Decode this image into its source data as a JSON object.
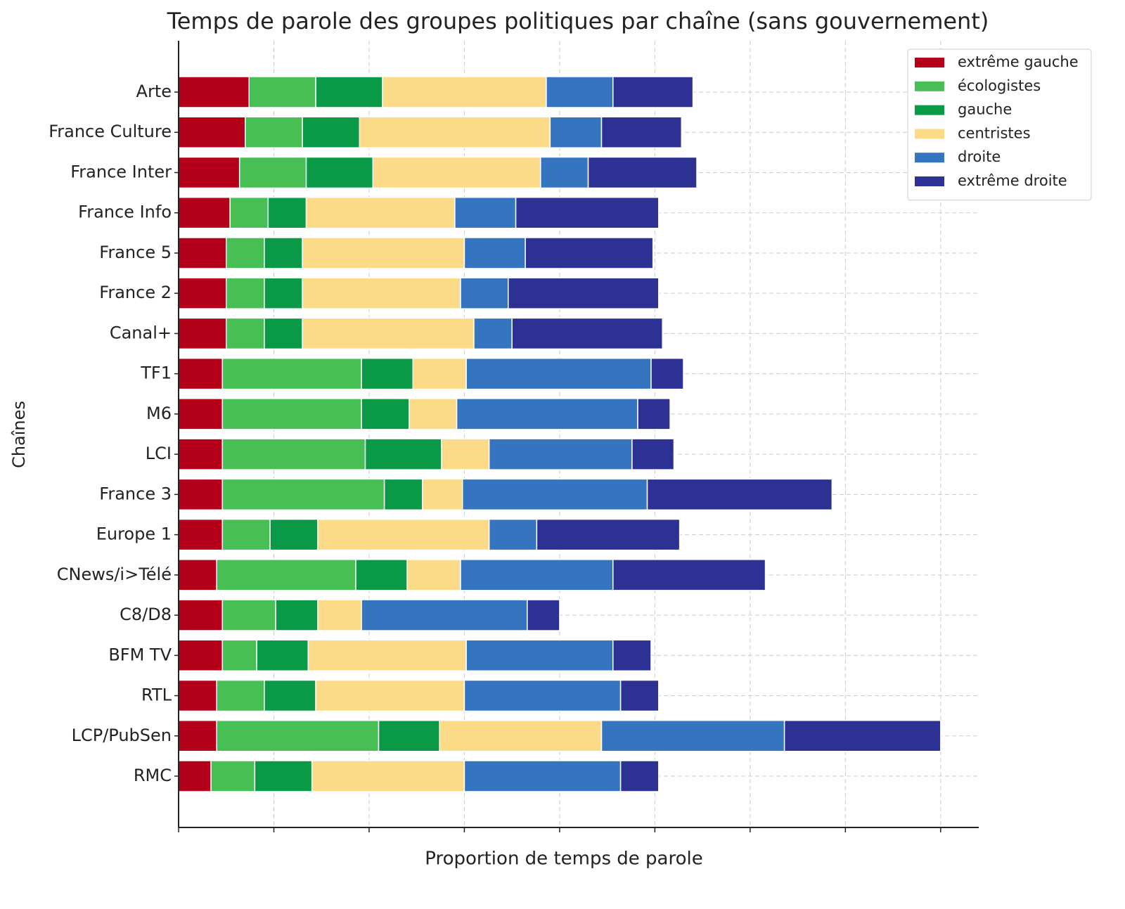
{
  "chart_data": {
    "type": "stacked-barh",
    "title": "Temps de parole des groupes politiques par chaîne (sans gouvernement)",
    "xlabel": "Proportion de temps de parole",
    "ylabel": "Chaînes",
    "categories": [
      "Arte",
      "France Culture",
      "France Inter",
      "France Info",
      "France 5",
      "France 2",
      "Canal+",
      "TF1",
      "M6",
      "LCI",
      "France 3",
      "Europe 1",
      "CNews/i>Télé",
      "C8/D8",
      "BFM TV",
      "RTL",
      "LCP/PubSen",
      "RMC"
    ],
    "series": [
      {
        "name": "extrême gauche",
        "color": "#b5001b",
        "values": [
          3.7,
          3.5,
          3.2,
          2.7,
          2.5,
          2.5,
          2.5,
          2.3,
          2.3,
          2.3,
          2.3,
          2.3,
          2.0,
          2.3,
          2.3,
          2.0,
          2.0,
          1.7
        ]
      },
      {
        "name": "écologistes",
        "color": "#47bf55",
        "values": [
          3.5,
          3.0,
          3.5,
          2.0,
          2.0,
          2.0,
          2.0,
          7.3,
          7.3,
          7.5,
          8.5,
          2.5,
          7.3,
          2.8,
          1.8,
          2.5,
          8.5,
          2.3
        ]
      },
      {
        "name": "gauche",
        "color": "#0a9a47",
        "values": [
          3.5,
          3.0,
          3.5,
          2.0,
          2.0,
          2.0,
          2.0,
          2.7,
          2.5,
          4.0,
          2.0,
          2.5,
          2.7,
          2.2,
          2.7,
          2.7,
          3.2,
          3.0
        ]
      },
      {
        "name": "centristes",
        "color": "#fbdb87",
        "values": [
          8.6,
          10.0,
          8.8,
          7.8,
          8.5,
          8.3,
          9.0,
          2.8,
          2.5,
          2.5,
          2.1,
          9.0,
          2.8,
          2.3,
          8.3,
          7.8,
          8.5,
          8.0
        ]
      },
      {
        "name": "droite",
        "color": "#3575c0",
        "values": [
          3.5,
          2.7,
          2.5,
          3.2,
          3.2,
          2.5,
          2.0,
          9.7,
          9.5,
          7.5,
          9.7,
          2.5,
          8.0,
          8.7,
          7.7,
          8.2,
          9.6,
          8.2
        ]
      },
      {
        "name": "extrême droite",
        "color": "#2c3193",
        "values": [
          4.2,
          4.2,
          5.7,
          7.5,
          6.7,
          7.9,
          7.9,
          1.7,
          1.7,
          2.2,
          9.7,
          7.5,
          8.0,
          1.7,
          2.0,
          2.0,
          8.2,
          2.0
        ]
      }
    ],
    "xlim": [
      0,
      42
    ],
    "xticks": [
      0,
      5,
      10,
      15,
      20,
      25,
      30,
      35,
      40
    ],
    "grid": true,
    "legend": "upper right"
  }
}
